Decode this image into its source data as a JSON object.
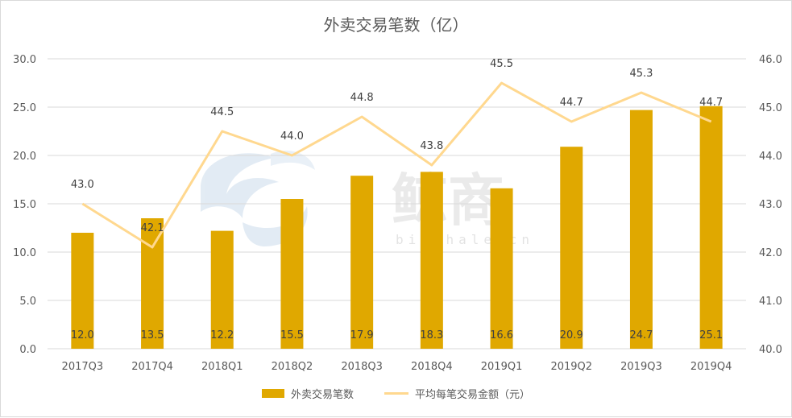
{
  "chart_data": {
    "type": "bar",
    "title": "外卖交易笔数（亿）",
    "categories": [
      "2017Q3",
      "2017Q4",
      "2018Q1",
      "2018Q2",
      "2018Q3",
      "2018Q4",
      "2019Q1",
      "2019Q2",
      "2019Q3",
      "2019Q4"
    ],
    "series": [
      {
        "name": "外卖交易笔数",
        "type": "bar",
        "axis": "left",
        "color": "#e0a800",
        "values": [
          12.0,
          13.5,
          12.2,
          15.5,
          17.9,
          18.3,
          16.6,
          20.9,
          24.7,
          25.1
        ],
        "labels": [
          "12.0",
          "13.5",
          "12.2",
          "15.5",
          "17.9",
          "18.3",
          "16.6",
          "20.9",
          "24.7",
          "25.1"
        ]
      },
      {
        "name": "平均每笔交易金额（元）",
        "type": "line",
        "axis": "right",
        "color": "#ffd88f",
        "values": [
          43.0,
          42.1,
          44.5,
          44.0,
          44.8,
          43.8,
          45.5,
          44.7,
          45.3,
          44.7
        ],
        "labels": [
          "43.0",
          "42.1",
          "44.5",
          "44.0",
          "44.8",
          "43.8",
          "45.5",
          "44.7",
          "45.3",
          "44.7"
        ]
      }
    ],
    "y_left": {
      "min": 0,
      "max": 30,
      "ticks": [
        "0.0",
        "5.0",
        "10.0",
        "15.0",
        "20.0",
        "25.0",
        "30.0"
      ]
    },
    "y_right": {
      "min": 40,
      "max": 46,
      "ticks": [
        "40.0",
        "41.0",
        "42.0",
        "43.0",
        "44.0",
        "45.0",
        "46.0"
      ]
    },
    "grid": true,
    "legend_position": "bottom"
  },
  "watermark": {
    "text": "鲸商",
    "subtext": "bizwhale.cn"
  }
}
